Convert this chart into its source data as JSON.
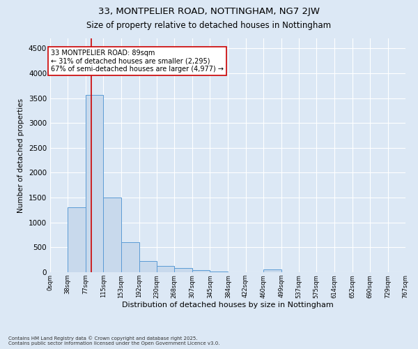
{
  "title1": "33, MONTPELIER ROAD, NOTTINGHAM, NG7 2JW",
  "title2": "Size of property relative to detached houses in Nottingham",
  "xlabel": "Distribution of detached houses by size in Nottingham",
  "ylabel": "Number of detached properties",
  "footnote": "Contains HM Land Registry data © Crown copyright and database right 2025.\nContains public sector information licensed under the Open Government Licence v3.0.",
  "bin_edges": [
    0,
    38,
    77,
    115,
    153,
    192,
    230,
    268,
    307,
    345,
    384,
    422,
    460,
    499,
    537,
    575,
    614,
    652,
    690,
    729,
    767
  ],
  "bar_heights": [
    5,
    1300,
    3560,
    1500,
    600,
    230,
    120,
    80,
    40,
    10,
    5,
    5,
    50,
    2,
    2,
    2,
    2,
    2,
    2,
    2
  ],
  "bar_color": "#c8d9ec",
  "bar_edge_color": "#5b9bd5",
  "property_size": 89,
  "red_line_color": "#cc0000",
  "annotation_text": "33 MONTPELIER ROAD: 89sqm\n← 31% of detached houses are smaller (2,295)\n67% of semi-detached houses are larger (4,977) →",
  "annotation_box_color": "#ffffff",
  "annotation_box_edge": "#cc0000",
  "ylim": [
    0,
    4700
  ],
  "yticks": [
    0,
    500,
    1000,
    1500,
    2000,
    2500,
    3000,
    3500,
    4000,
    4500
  ],
  "background_color": "#dce8f5",
  "plot_background": "#dce8f5",
  "grid_color": "#ffffff",
  "title1_fontsize": 9.5,
  "title2_fontsize": 8.5,
  "annotation_fontsize": 7.0,
  "ylabel_fontsize": 7.5,
  "xlabel_fontsize": 8.0,
  "ytick_fontsize": 7.5,
  "xtick_fontsize": 6.0,
  "footnote_fontsize": 5.0
}
